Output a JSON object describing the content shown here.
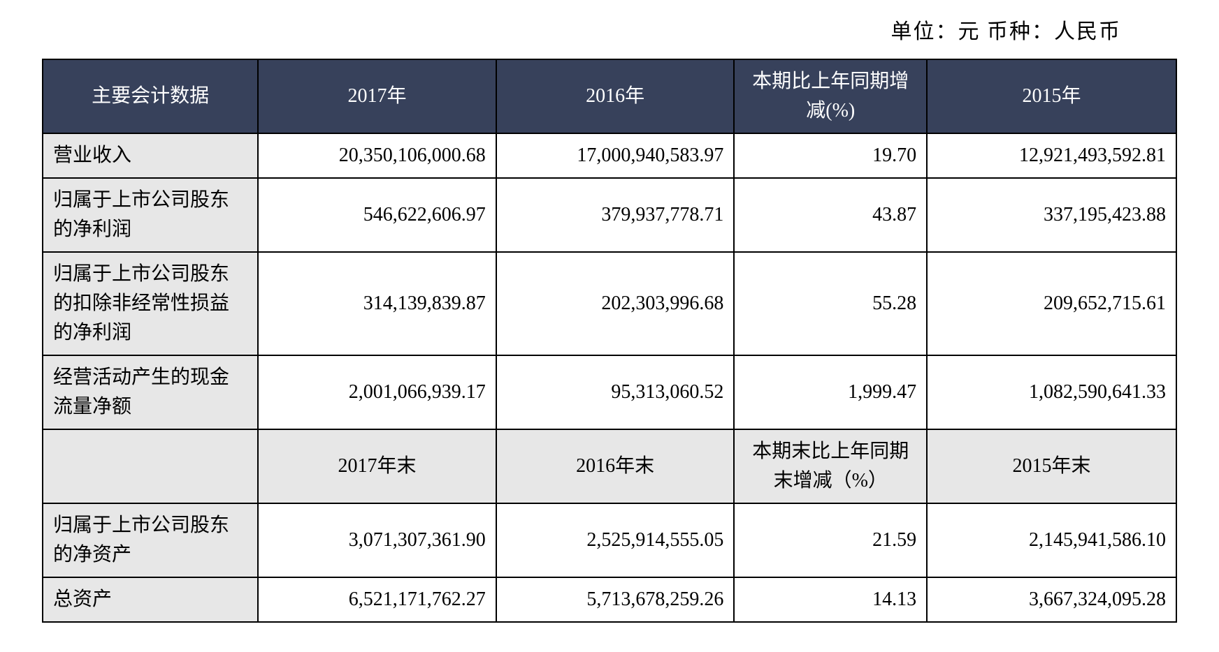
{
  "unit_line": "单位：元  币种：人民币",
  "header": {
    "c0": "主要会计数据",
    "c1": "2017年",
    "c2": "2016年",
    "c3": "本期比上年同期增减(%)",
    "c4": "2015年"
  },
  "rows1": [
    {
      "label": "营业收入",
      "y2017": "20,350,106,000.68",
      "y2016": "17,000,940,583.97",
      "pct": "19.70",
      "y2015": "12,921,493,592.81"
    },
    {
      "label": "归属于上市公司股东的净利润",
      "y2017": "546,622,606.97",
      "y2016": "379,937,778.71",
      "pct": "43.87",
      "y2015": "337,195,423.88"
    },
    {
      "label": "归属于上市公司股东的扣除非经常性损益的净利润",
      "y2017": "314,139,839.87",
      "y2016": "202,303,996.68",
      "pct": "55.28",
      "y2015": "209,652,715.61"
    },
    {
      "label": "经营活动产生的现金流量净额",
      "y2017": "2,001,066,939.17",
      "y2016": "95,313,060.52",
      "pct": "1,999.47",
      "y2015": "1,082,590,641.33"
    }
  ],
  "subheader": {
    "c0": "",
    "c1": "2017年末",
    "c2": "2016年末",
    "c3": "本期末比上年同期末增减（%）",
    "c4": "2015年末"
  },
  "rows2": [
    {
      "label": "归属于上市公司股东的净资产",
      "y2017": "3,071,307,361.90",
      "y2016": "2,525,914,555.05",
      "pct": "21.59",
      "y2015": "2,145,941,586.10"
    },
    {
      "label": "总资产",
      "y2017": "6,521,171,762.27",
      "y2016": "5,713,678,259.26",
      "pct": "14.13",
      "y2015": "3,667,324,095.28"
    }
  ],
  "style": {
    "header_bg": "#37415b",
    "header_fg": "#ffffff",
    "label_bg": "#e7e7e7",
    "border_color": "#000000",
    "body_bg": "#ffffff",
    "font_family": "SimSun"
  }
}
